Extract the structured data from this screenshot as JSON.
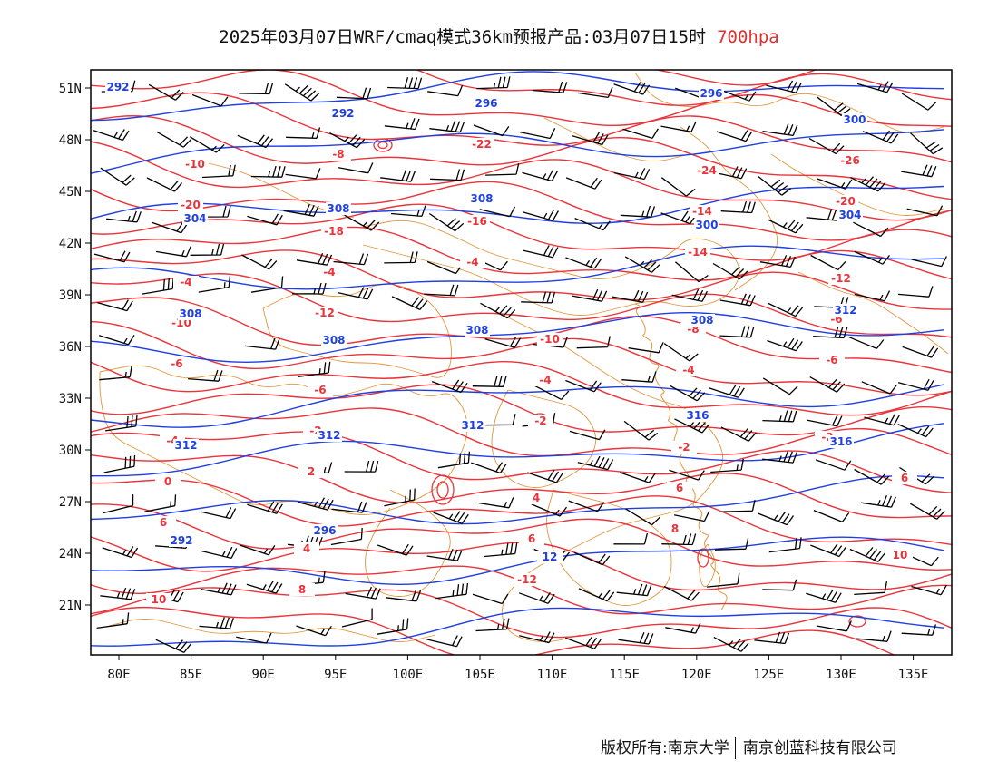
{
  "title": {
    "main": "2025年03月07日WRF/cmaq模式36km预报产品:03月07日15时",
    "level": "700hpa"
  },
  "colors": {
    "temperature_contour": "#e8343a",
    "height_contour": "#1f3fe0",
    "boundary": "#e0963c",
    "wind_barb": "#000000",
    "level_text": "#e03030"
  },
  "axes": {
    "lon_labels": [
      "80E",
      "85E",
      "90E",
      "95E",
      "100E",
      "105E",
      "110E",
      "115E",
      "120E",
      "125E",
      "130E",
      "135E"
    ],
    "lat_labels": [
      "51N",
      "48N",
      "45N",
      "42N",
      "39N",
      "36N",
      "33N",
      "30N",
      "27N",
      "24N",
      "21N"
    ],
    "lon_range": [
      78,
      138
    ],
    "lat_range": [
      18,
      52
    ]
  },
  "temperature_labels": [
    "-12",
    "-10",
    "-16",
    "-8",
    "-6",
    "-10",
    "-8",
    "-22",
    "-24",
    "-26",
    "-20",
    "-18",
    "-16",
    "-14",
    "-20",
    "-4",
    "-4",
    "-4",
    "-14",
    "-12",
    "-10",
    "-12",
    "-10",
    "-8",
    "-6",
    "-6",
    "-6",
    "-4",
    "-4",
    "-6",
    "-4",
    "-2",
    "-2",
    "-2",
    "-2",
    "0",
    "2",
    "4",
    "6",
    "6",
    "6",
    "4",
    "6",
    "8",
    "10",
    "10",
    "8",
    "-12"
  ],
  "height_labels": [
    "292",
    "292",
    "296",
    "296",
    "300",
    "304",
    "308",
    "308",
    "300",
    "304",
    "308",
    "308",
    "308",
    "308",
    "312",
    "312",
    "312",
    "312",
    "316",
    "316",
    "292",
    "296",
    "12"
  ],
  "credit": {
    "left": "版权所有:南京大学",
    "right": "南京创蓝科技有限公司"
  }
}
